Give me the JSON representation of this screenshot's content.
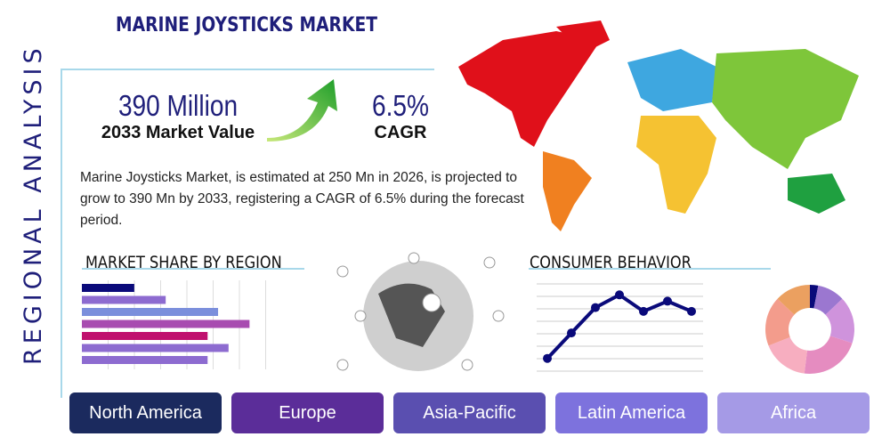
{
  "title": "MARINE JOYSTICKS MARKET",
  "side_label": "REGIONAL ANALYSIS",
  "market_value": {
    "value": "390 Million",
    "label": "2033 Market Value"
  },
  "cagr": {
    "value": "6.5%",
    "label": "CAGR"
  },
  "description": "Marine Joysticks Market, is estimated at 250 Mn in 2026, is projected to grow to 390 Mn by 2033, registering a CAGR of 6.5% during the forecast period.",
  "market_share_heading": "MARKET SHARE BY REGION",
  "consumer_behavior_heading": "CONSUMER BEHAVIOR",
  "tabs": [
    {
      "label": "North America",
      "color": "#1b2a5e"
    },
    {
      "label": "Europe",
      "color": "#5b2d99"
    },
    {
      "label": "Asia-Pacific",
      "color": "#5a4fb0"
    },
    {
      "label": "Latin America",
      "color": "#7d72dd"
    },
    {
      "label": "Africa",
      "color": "#a59ae6"
    }
  ],
  "chart_data": [
    {
      "type": "bar",
      "orientation": "horizontal",
      "values": [
        2,
        3.2,
        5.2,
        6.4,
        4.8,
        5.6,
        4.8
      ],
      "colors": [
        "#0a0a7a",
        "#8d6bd0",
        "#7b8fdc",
        "#a84cb0",
        "#c0106e",
        "#8d6bd0",
        "#8d6bd0"
      ],
      "xlim": [
        0,
        7
      ],
      "grid": true
    },
    {
      "type": "line",
      "values": [
        1,
        3,
        5,
        6,
        4.7,
        5.5,
        4.7
      ],
      "ylim": [
        0,
        7
      ],
      "grid": true,
      "color": "#0a0a7a"
    },
    {
      "type": "pie",
      "donut": true,
      "values": [
        3,
        10,
        17,
        22,
        17,
        18,
        13
      ],
      "colors": [
        "#0a0a7a",
        "#9b77d0",
        "#cf93dc",
        "#e58cc0",
        "#f7aec0",
        "#f39c8c",
        "#eba060"
      ]
    }
  ]
}
